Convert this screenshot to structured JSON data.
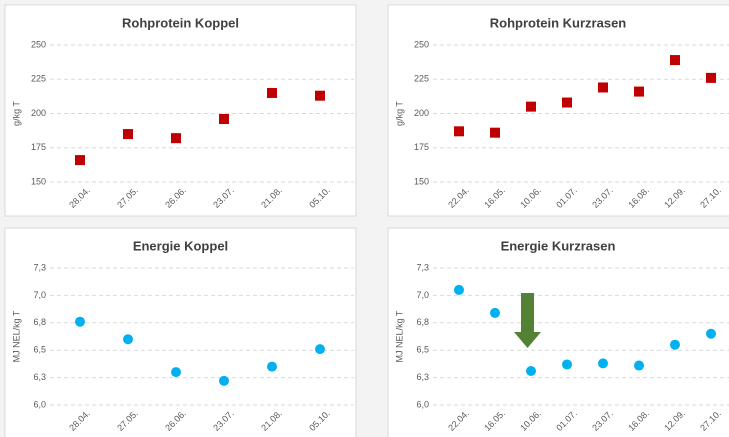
{
  "chart_data": [
    {
      "type": "scatter",
      "title": "Rohprotein Koppel",
      "y_label": "g/kg T",
      "categories": [
        "28.04.",
        "27.05.",
        "26.06.",
        "23.07.",
        "21.08.",
        "05.10."
      ],
      "values": [
        166,
        185,
        182,
        196,
        215,
        213
      ],
      "color": "#c00000",
      "marker": "square",
      "ylim": [
        150,
        250
      ],
      "yticks": [
        150,
        175,
        200,
        225,
        250
      ],
      "grid": true
    },
    {
      "type": "scatter",
      "title": "Rohprotein Kurzrasen",
      "y_label": "g/kg T",
      "categories": [
        "22.04.",
        "16.05.",
        "10.06.",
        "01.07.",
        "23.07.",
        "16.08.",
        "12.09.",
        "27.10."
      ],
      "values": [
        187,
        186,
        205,
        208,
        219,
        216,
        239,
        226
      ],
      "color": "#c00000",
      "marker": "square",
      "ylim": [
        150,
        250
      ],
      "yticks": [
        150,
        175,
        200,
        225,
        250
      ],
      "grid": true
    },
    {
      "type": "scatter",
      "title": "Energie Koppel",
      "y_label": "MJ NEL/kg T",
      "categories": [
        "28.04.",
        "27.05.",
        "26.06.",
        "23.07.",
        "21.08.",
        "05.10."
      ],
      "values": [
        6.76,
        6.6,
        6.3,
        6.22,
        6.35,
        6.51
      ],
      "color": "#00b0f0",
      "marker": "circle",
      "ylim": [
        6.0,
        7.25
      ],
      "yticks": [
        {
          "value": 6.0,
          "label": "6,0"
        },
        {
          "value": 6.25,
          "label": "6,3"
        },
        {
          "value": 6.5,
          "label": "6,5"
        },
        {
          "value": 6.75,
          "label": "6,8"
        },
        {
          "value": 7.0,
          "label": "7,0"
        },
        {
          "value": 7.25,
          "label": "7,3"
        }
      ],
      "grid": true
    },
    {
      "type": "scatter",
      "title": "Energie Kurzrasen",
      "y_label": "MJ NEL/kg T",
      "categories": [
        "22.04.",
        "16.05.",
        "10.06.",
        "01.07.",
        "23.07.",
        "16.08.",
        "12.09.",
        "27.10."
      ],
      "values": [
        7.05,
        6.84,
        6.31,
        6.37,
        6.38,
        6.36,
        6.55,
        6.65
      ],
      "color": "#00b0f0",
      "marker": "circle",
      "ylim": [
        6.0,
        7.25
      ],
      "yticks": [
        {
          "value": 6.0,
          "label": "6,0"
        },
        {
          "value": 6.25,
          "label": "6,3"
        },
        {
          "value": 6.5,
          "label": "6,5"
        },
        {
          "value": 6.75,
          "label": "6,8"
        },
        {
          "value": 7.0,
          "label": "7,0"
        },
        {
          "value": 7.25,
          "label": "7,3"
        }
      ],
      "grid": true
    }
  ]
}
